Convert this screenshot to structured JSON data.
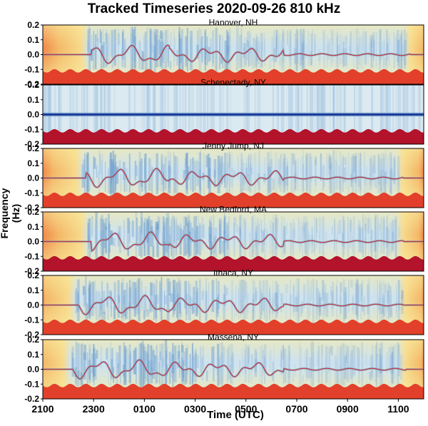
{
  "chart_data": {
    "type": "heatmap",
    "title": "Tracked Timeseries 2020-09-26 810 kHz",
    "xlabel": "Time (UTC)",
    "ylabel": "Frequency (Hz)",
    "x_ticks": [
      "2100",
      "2300",
      "0100",
      "0300",
      "0500",
      "0700",
      "0900",
      "1100"
    ],
    "y_ticks": [
      "0.2",
      "0.1",
      "0.0",
      "-0.1",
      "-0.2"
    ],
    "ylim": [
      -0.2,
      0.2
    ],
    "panels": [
      {
        "name": "Hanover, NH",
        "tracked": true,
        "active_hours": [
          1.5,
          14.5
        ]
      },
      {
        "name": "Schenectady, NY",
        "tracked": false,
        "active_hours": [
          0,
          15
        ]
      },
      {
        "name": "Jenny Jump, NJ",
        "tracked": true,
        "active_hours": [
          1.3,
          14.2
        ]
      },
      {
        "name": "New Bedford, MA",
        "tracked": true,
        "active_hours": [
          1.5,
          14.2
        ]
      },
      {
        "name": "Ithaca, NY",
        "tracked": true,
        "active_hours": [
          1.0,
          14.3
        ]
      },
      {
        "name": "Massena, NY",
        "tracked": true,
        "active_hours": [
          0.8,
          14.3
        ]
      }
    ],
    "colors": {
      "background_quiet": "#f7d98b",
      "background_edge": "#f08a4b",
      "noise_light": "#cfe3ee",
      "noise_blue": "#6a9ccc",
      "track": "#c0393b",
      "band_red": "#e2402a",
      "band_dark": "#b3132b",
      "schenectady_line": "#1f3f9a"
    }
  }
}
